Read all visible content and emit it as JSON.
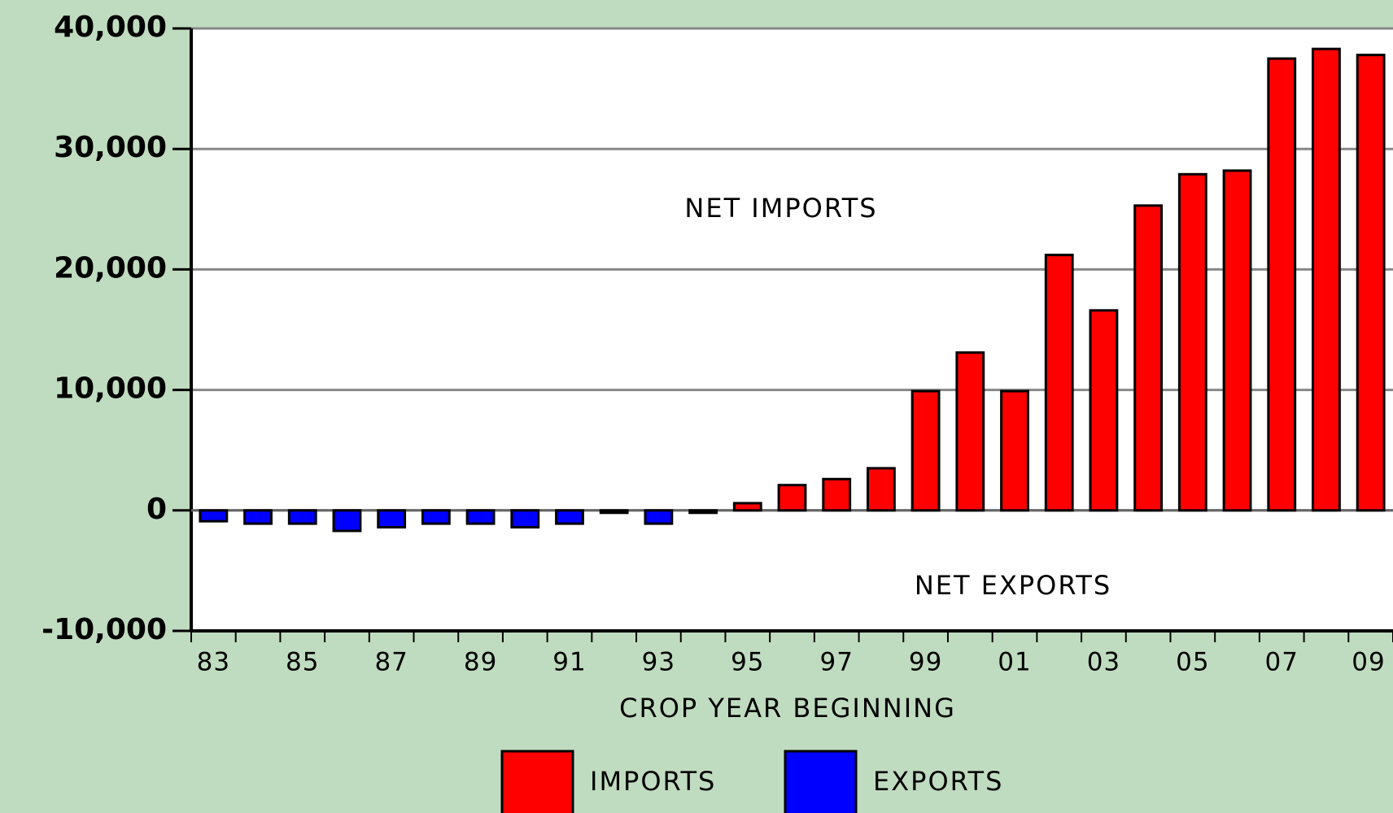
{
  "chart_data": {
    "type": "bar",
    "categories": [
      "83",
      null,
      "85",
      null,
      "87",
      null,
      "89",
      null,
      "91",
      null,
      "93",
      null,
      "95",
      null,
      "97",
      null,
      "99",
      null,
      "01",
      null,
      "03",
      null,
      "05",
      null,
      "07",
      null,
      "09"
    ],
    "series": [
      {
        "name": "IMPORTS",
        "color": "#ff0000",
        "values": [
          null,
          null,
          null,
          null,
          null,
          null,
          null,
          null,
          null,
          null,
          null,
          null,
          600,
          2100,
          2600,
          3500,
          9900,
          13100,
          9900,
          21200,
          16600,
          25300,
          27900,
          28200,
          37500,
          38300,
          37800
        ]
      },
      {
        "name": "EXPORTS",
        "color": "#0000ff",
        "values": [
          -900,
          -1100,
          -1100,
          -1700,
          -1400,
          -1100,
          -1100,
          -1400,
          -1100,
          -200,
          -1100,
          -200,
          null,
          null,
          null,
          null,
          null,
          null,
          null,
          null,
          null,
          null,
          null,
          null,
          null,
          null,
          null
        ]
      }
    ],
    "ylim": [
      -10000,
      40000
    ],
    "yticks": [
      {
        "value": -10000,
        "label": "-10,000"
      },
      0,
      {
        "value": 10000,
        "label": "10,000"
      },
      {
        "value": 20000,
        "label": "20,000"
      },
      {
        "value": 30000,
        "label": "30,000"
      },
      {
        "value": 40000,
        "label": "40,000"
      }
    ],
    "grid": true,
    "xlabel": "CROP YEAR BEGINNING",
    "annotations": [
      "NET IMPORTS",
      "NET EXPORTS"
    ],
    "legend": "bottom"
  }
}
